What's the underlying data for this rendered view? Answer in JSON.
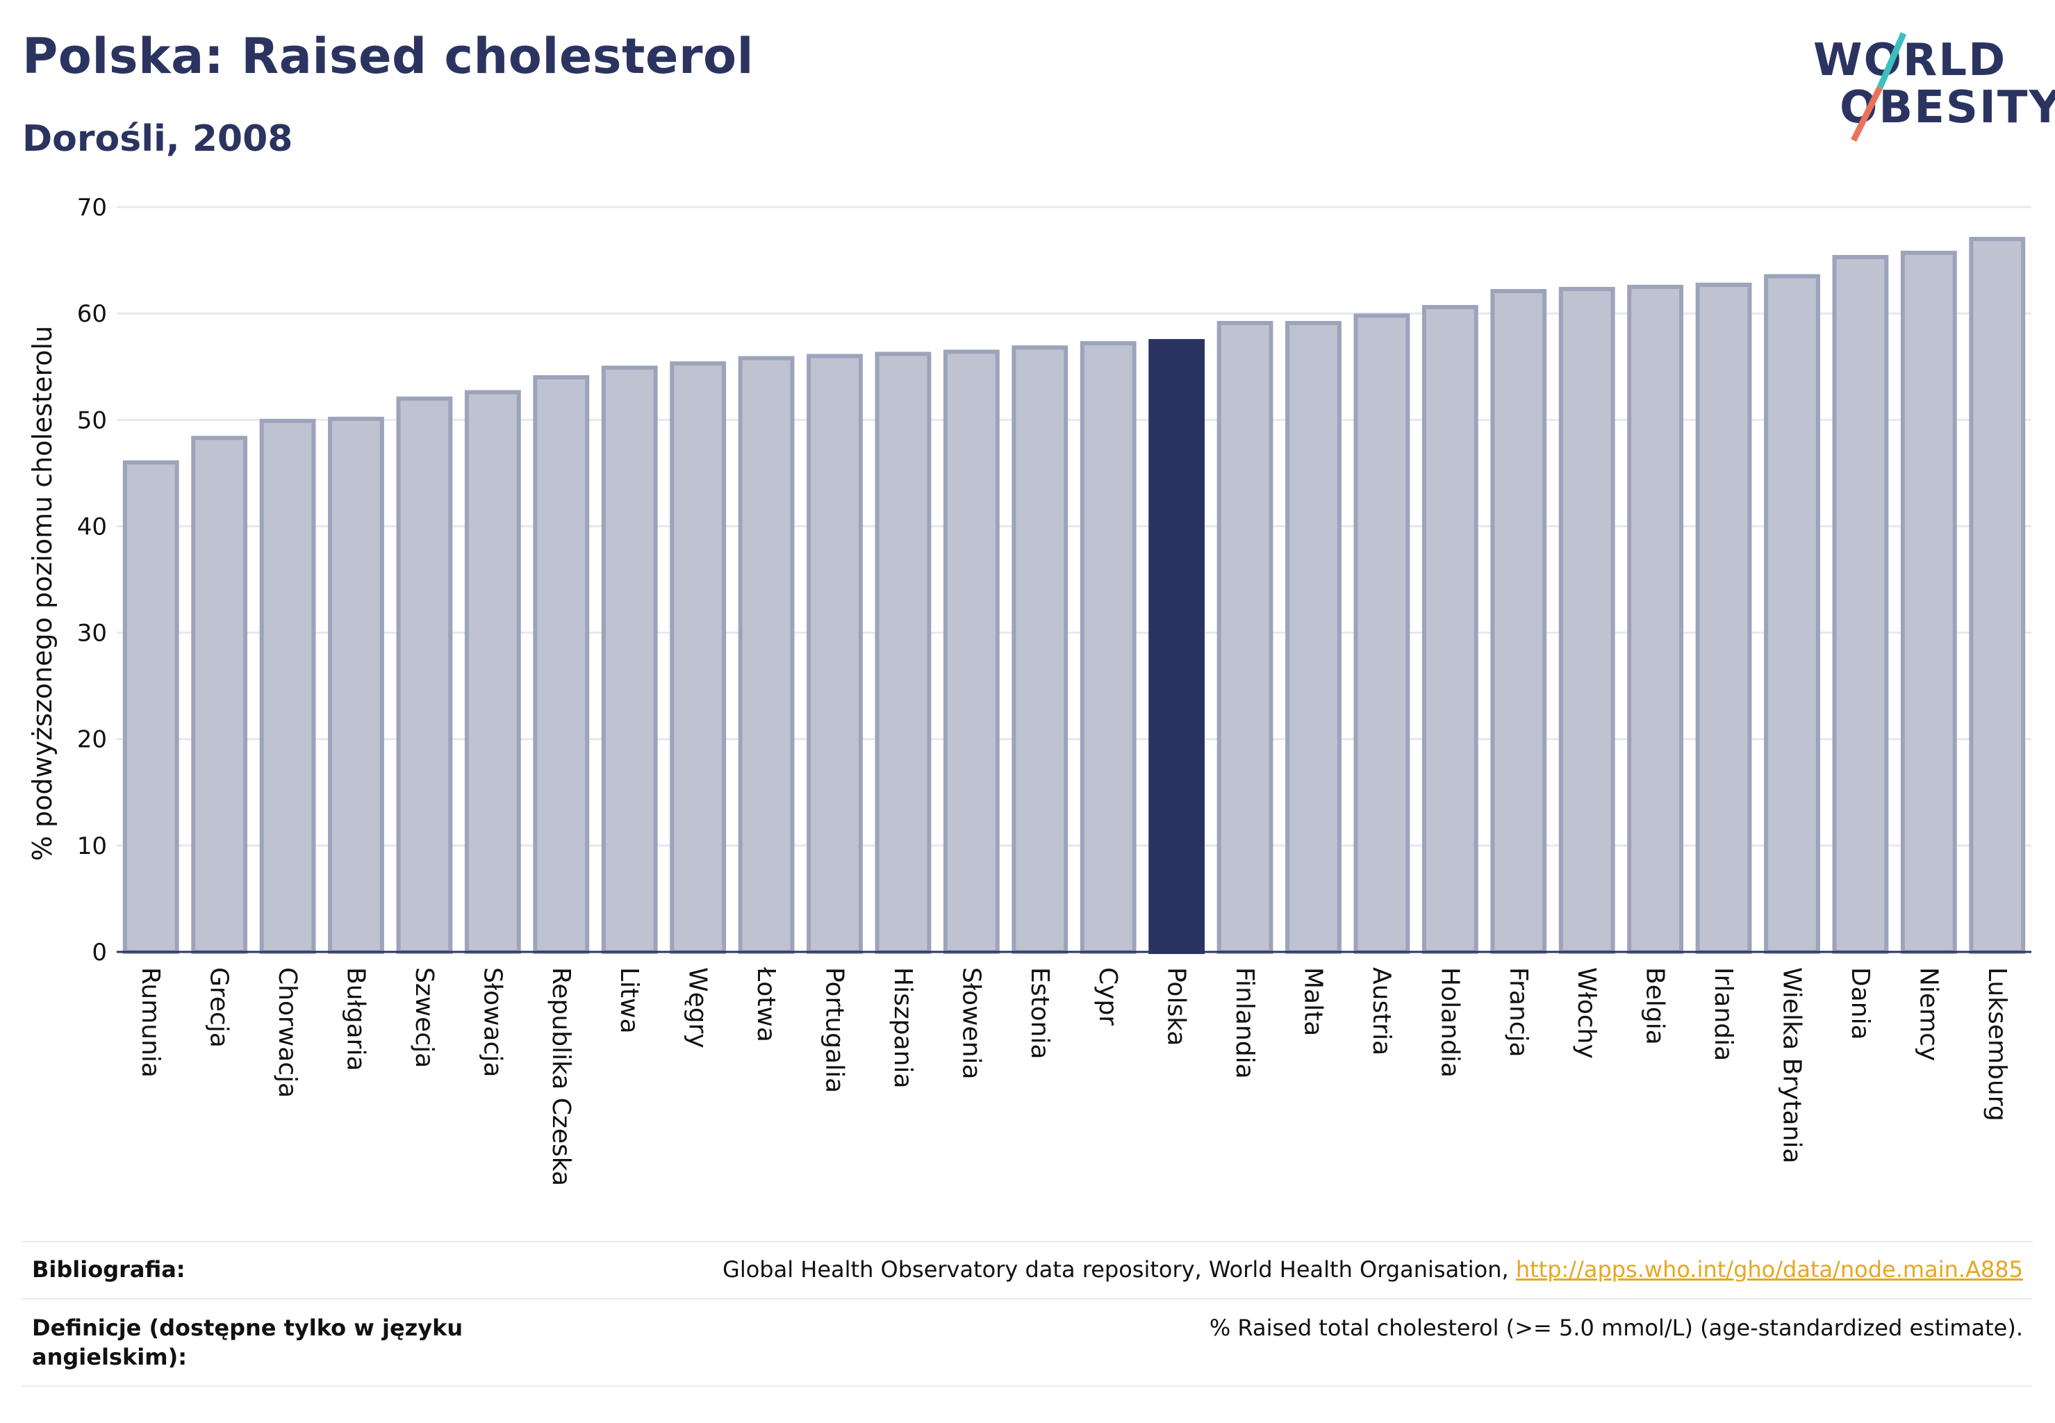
{
  "header": {
    "title": "Polska: Raised cholesterol",
    "subtitle": "Dorośli, 2008"
  },
  "logo": {
    "line1": "WORLD",
    "line2": "OBESITY",
    "accent_teal": "#3cbfc0",
    "accent_coral": "#e8735a"
  },
  "colors": {
    "bar_default": "#bfc3d1",
    "bar_default_border": "#9ca3ba",
    "bar_highlight": "#2b3460",
    "grid": "#e6e8ef",
    "axis": "#2b3460",
    "text": "#111111"
  },
  "chart_data": {
    "type": "bar",
    "ylabel": "% podwyższonego poziomu cholesterolu",
    "ylim": [
      0,
      70
    ],
    "yticks": [
      0,
      10,
      20,
      30,
      40,
      50,
      60,
      70
    ],
    "grid": true,
    "highlight": "Polska",
    "categories": [
      "Rumunia",
      "Grecja",
      "Chorwacja",
      "Bułgaria",
      "Szwecja",
      "Słowacja",
      "Republika Czeska",
      "Litwa",
      "Węgry",
      "Łotwa",
      "Portugalia",
      "Hiszpania",
      "Słowenia",
      "Estonia",
      "Cypr",
      "Polska",
      "Finlandia",
      "Malta",
      "Austria",
      "Holandia",
      "Francja",
      "Włochy",
      "Belgia",
      "Irlandia",
      "Wielka Brytania",
      "Dania",
      "Niemcy",
      "Luksemburg"
    ],
    "values": [
      46.0,
      48.3,
      49.9,
      50.1,
      52.0,
      52.6,
      54.0,
      54.9,
      55.3,
      55.8,
      56.0,
      56.2,
      56.4,
      56.8,
      57.2,
      57.4,
      59.1,
      59.1,
      59.8,
      60.6,
      62.1,
      62.3,
      62.5,
      62.7,
      63.5,
      65.3,
      65.7,
      67.0
    ]
  },
  "footer": {
    "bibliography_label": "Bibliografia:",
    "bibliography_text": "Global Health Observatory data repository, World Health Organisation, ",
    "bibliography_link": "http://apps.who.int/gho/data/node.main.A885",
    "definitions_label": "Definicje (dostępne tylko w języku angielskim):",
    "definitions_text": "% Raised total cholesterol (>= 5.0 mmol/L) (age-standardized estimate)."
  }
}
